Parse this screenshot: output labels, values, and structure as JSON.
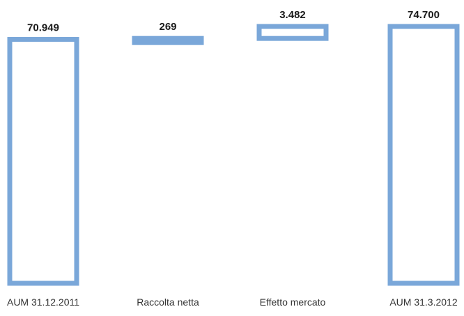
{
  "chart_data": {
    "type": "bar",
    "subtype": "waterfall",
    "title": "",
    "xlabel": "",
    "ylabel": "",
    "grid": false,
    "categories": [
      "AUM 31.12.2011",
      "Raccolta netta",
      "Effetto mercato",
      "AUM 31.3.2012"
    ],
    "values": [
      70949,
      269,
      3482,
      74700
    ],
    "value_labels": [
      "70.949",
      "269",
      "3.482",
      "74.700"
    ],
    "bar_kinds": [
      "total",
      "delta",
      "delta",
      "total"
    ],
    "ylim": [
      0,
      74700
    ],
    "colors": {
      "bar_outline": "#7aa7d9"
    }
  }
}
